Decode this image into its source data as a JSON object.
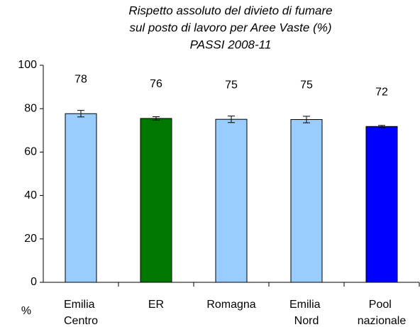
{
  "chart_data": {
    "type": "bar",
    "title": [
      "Rispetto assoluto del divieto di fumare",
      "sul posto di lavoro per Aree Vaste (%)",
      "PASSI 2008-11"
    ],
    "y_label": "%",
    "categories": [
      "Emilia Centro",
      "ER",
      "Romagna",
      "Emilia Nord",
      "Pool nazionale"
    ],
    "values": [
      77.7,
      75.5,
      75.1,
      75.0,
      71.8
    ],
    "value_labels": [
      "78",
      "76",
      "75",
      "75",
      "72"
    ],
    "errors": [
      1.5,
      0.8,
      1.5,
      1.5,
      0.5
    ],
    "colors": [
      "#99ccff",
      "#007700",
      "#99ccff",
      "#99ccff",
      "#0000ff"
    ],
    "ylim": [
      0,
      100
    ],
    "yticks": [
      0,
      20,
      40,
      60,
      80,
      100
    ],
    "grid": false
  }
}
